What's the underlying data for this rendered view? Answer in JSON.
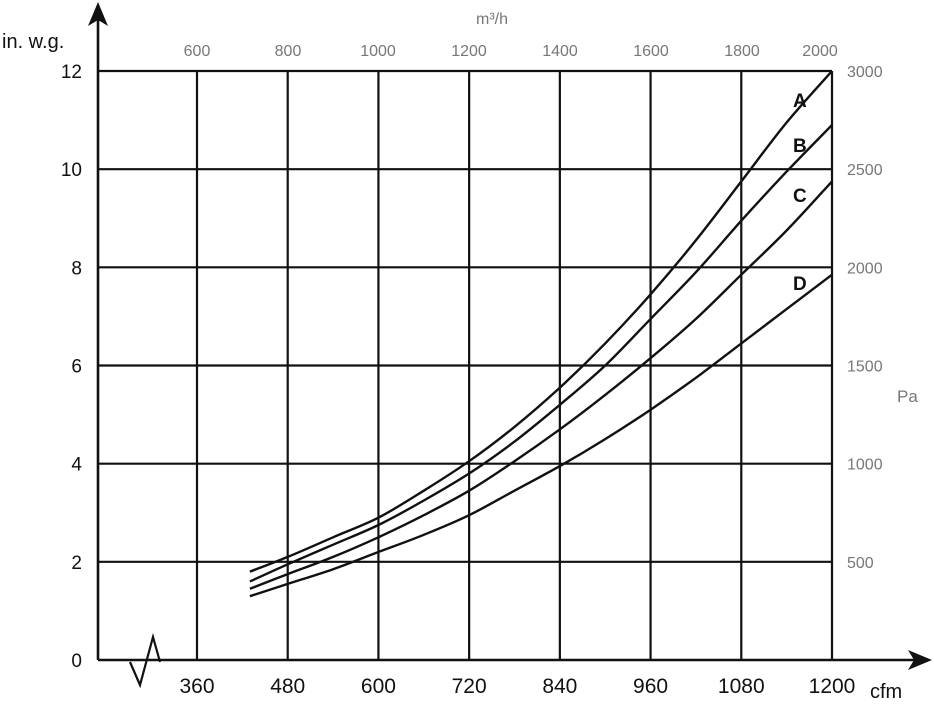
{
  "chart_data": {
    "type": "line",
    "xlabel": "cfm",
    "ylabel": "in. w.g.",
    "x2label": "m³/h",
    "y2label": "Pa",
    "xlim": [
      300,
      1200
    ],
    "ylim": [
      0,
      12
    ],
    "x_ticks": [
      "360",
      "480",
      "600",
      "720",
      "840",
      "960",
      "1080",
      "1200"
    ],
    "y_ticks": [
      "0",
      "2",
      "4",
      "6",
      "8",
      "10",
      "12"
    ],
    "x2_ticks": [
      "600",
      "800",
      "1000",
      "1200",
      "1400",
      "1600",
      "1800",
      "2000"
    ],
    "y2_ticks": [
      "500",
      "1000",
      "1500",
      "2000",
      "2500",
      "3000"
    ],
    "grid": true,
    "series": [
      {
        "name": "A",
        "x": [
          430,
          480,
          540,
          600,
          660,
          720,
          780,
          840,
          900,
          960,
          1020,
          1080,
          1140,
          1200
        ],
        "y": [
          1.8,
          2.1,
          2.5,
          2.9,
          3.45,
          4.05,
          4.75,
          5.55,
          6.45,
          7.45,
          8.55,
          9.75,
          10.95,
          12.0
        ]
      },
      {
        "name": "B",
        "x": [
          430,
          480,
          540,
          600,
          660,
          720,
          780,
          840,
          900,
          960,
          1020,
          1080,
          1140,
          1200
        ],
        "y": [
          1.6,
          1.95,
          2.35,
          2.75,
          3.25,
          3.8,
          4.45,
          5.2,
          6.0,
          6.95,
          7.9,
          8.95,
          9.95,
          10.9
        ]
      },
      {
        "name": "C",
        "x": [
          430,
          480,
          540,
          600,
          660,
          720,
          780,
          840,
          900,
          960,
          1020,
          1080,
          1140,
          1200
        ],
        "y": [
          1.45,
          1.75,
          2.1,
          2.5,
          2.95,
          3.45,
          4.05,
          4.7,
          5.4,
          6.15,
          6.95,
          7.85,
          8.75,
          9.75
        ]
      },
      {
        "name": "D",
        "x": [
          430,
          480,
          540,
          600,
          660,
          720,
          780,
          840,
          900,
          960,
          1020,
          1080,
          1140,
          1200
        ],
        "y": [
          1.3,
          1.55,
          1.85,
          2.2,
          2.55,
          2.95,
          3.45,
          3.95,
          4.5,
          5.1,
          5.75,
          6.45,
          7.15,
          7.85
        ]
      }
    ]
  }
}
